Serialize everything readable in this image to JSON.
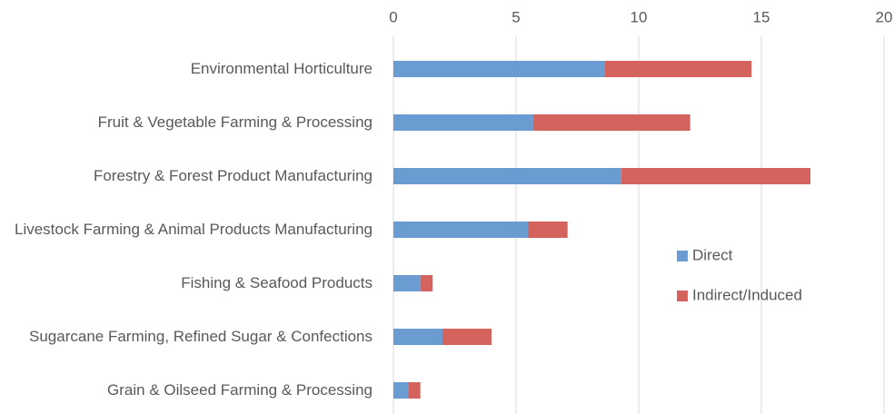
{
  "chart_data": {
    "type": "bar",
    "orientation": "horizontal",
    "stacked": true,
    "categories": [
      "Environmental Horticulture",
      "Fruit & Vegetable Farming & Processing",
      "Forestry & Forest Product Manufacturing",
      "Livestock Farming & Animal Products Manufacturing",
      "Fishing & Seafood Products",
      "Sugarcane Farming, Refined Sugar & Confections",
      "Grain & Oilseed Farming & Processing"
    ],
    "series": [
      {
        "name": "Direct",
        "color": "#6a9bd1",
        "values": [
          8.6,
          5.7,
          9.3,
          5.5,
          1.1,
          2.0,
          0.6
        ]
      },
      {
        "name": "Indirect/Induced",
        "color": "#d4635d",
        "values": [
          6.0,
          6.4,
          7.7,
          1.6,
          0.5,
          2.0,
          0.5
        ]
      }
    ],
    "xlim": [
      0,
      20
    ],
    "xticks": [
      0,
      5,
      10,
      15,
      20
    ],
    "grid": true,
    "legend": "right"
  }
}
